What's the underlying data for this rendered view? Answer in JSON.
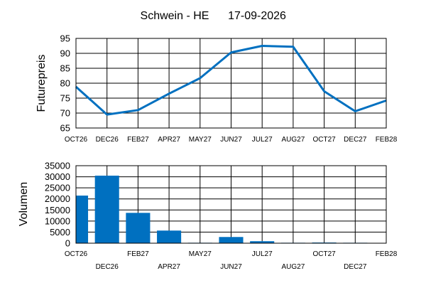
{
  "colors": {
    "series": "#0070c0",
    "grid": "#000000",
    "background": "#ffffff"
  },
  "chart_data": [
    {
      "type": "line",
      "title": "Schwein - HE",
      "date": "17-09-2026",
      "ylabel": "Futurepreis",
      "ylim": [
        65,
        95
      ],
      "yticks": [
        65,
        70,
        75,
        80,
        85,
        90,
        95
      ],
      "categories": [
        "OCT26",
        "DEC26",
        "FEB27",
        "APR27",
        "MAY27",
        "JUN27",
        "JUL27",
        "AUG27",
        "OCT27",
        "DEC27",
        "FEB28"
      ],
      "values": [
        78.8,
        69.5,
        71.0,
        76.5,
        81.7,
        90.3,
        92.5,
        92.2,
        77.3,
        70.6,
        74.2
      ],
      "grid": true
    },
    {
      "type": "bar",
      "ylabel": "Volumen",
      "ylim": [
        0,
        35000
      ],
      "yticks": [
        0,
        5000,
        10000,
        15000,
        20000,
        25000,
        30000,
        35000
      ],
      "categories": [
        "OCT26",
        "DEC26",
        "FEB27",
        "APR27",
        "MAY27",
        "JUN27",
        "JUL27",
        "AUG27",
        "OCT27",
        "DEC27",
        "FEB28"
      ],
      "values": [
        21500,
        30500,
        13700,
        5700,
        200,
        2800,
        900,
        200,
        300,
        200,
        0
      ],
      "grid": true
    }
  ]
}
